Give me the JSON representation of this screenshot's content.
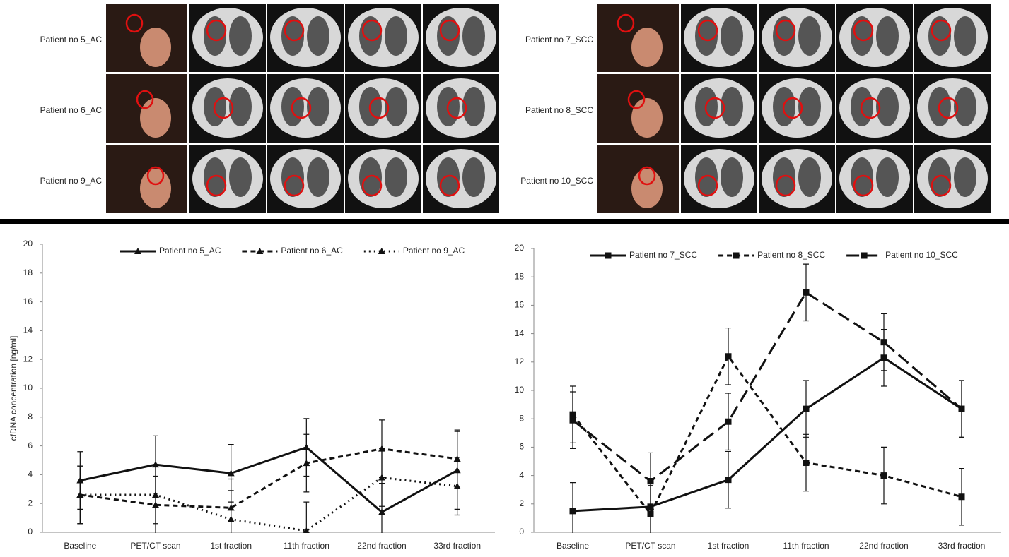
{
  "image_labels": {
    "left": [
      "Patient no 5_AC",
      "Patient no 6_AC",
      "Patient no 9_AC"
    ],
    "right": [
      "Patient no 7_SCC",
      "Patient no 8_SCC",
      "Patient no 10_SCC"
    ]
  },
  "chart_data": [
    {
      "type": "line",
      "y_label": "cfDNA concentration [ng/ml]",
      "categories": [
        "Baseline",
        "PET/CT scan",
        "1st fraction",
        "11th fraction",
        "22nd fraction",
        "33rd fraction"
      ],
      "ylim": [
        0,
        20
      ],
      "yticks": [
        0,
        2,
        4,
        6,
        8,
        10,
        12,
        14,
        16,
        18,
        20
      ],
      "marker": "triangle",
      "series": [
        {
          "name": "Patient no 5_AC",
          "color": "#111111",
          "dash": "solid",
          "values": [
            3.6,
            4.7,
            4.1,
            5.9,
            1.4,
            4.3
          ],
          "errors": [
            2,
            2,
            2,
            2,
            2,
            2.7
          ]
        },
        {
          "name": "Patient no 6_AC",
          "color": "#111111",
          "dash": "dash",
          "values": [
            2.6,
            1.9,
            1.7,
            4.8,
            5.8,
            5.1
          ],
          "errors": [
            2,
            2,
            2,
            2,
            2,
            2
          ]
        },
        {
          "name": "Patient no 9_AC",
          "color": "#111111",
          "dash": "dot",
          "values": [
            2.6,
            2.6,
            0.9,
            0.1,
            3.8,
            3.2
          ],
          "errors": [
            2,
            2,
            2,
            2,
            2,
            2
          ]
        }
      ]
    },
    {
      "type": "line",
      "categories": [
        "Baseline",
        "PET/CT scan",
        "1st fraction",
        "11th fraction",
        "22nd fraction",
        "33rd fraction"
      ],
      "ylim": [
        0,
        20
      ],
      "yticks": [
        0,
        2,
        4,
        6,
        8,
        10,
        12,
        14,
        16,
        18,
        20
      ],
      "marker": "square",
      "series": [
        {
          "name": "Patient no 7_SCC",
          "color": "#111111",
          "dash": "solid",
          "values": [
            1.5,
            1.8,
            3.7,
            8.7,
            12.3,
            8.7
          ],
          "errors": [
            2,
            2,
            2,
            2,
            2,
            2
          ]
        },
        {
          "name": "Patient no 8_SCC",
          "color": "#111111",
          "dash": "dash",
          "values": [
            8.3,
            1.3,
            12.4,
            4.9,
            4.0,
            2.5
          ],
          "errors": [
            2,
            2,
            2,
            2,
            2,
            2
          ]
        },
        {
          "name": "Patient no 10_SCC",
          "color": "#111111",
          "dash": "longdash",
          "values": [
            7.9,
            3.6,
            7.8,
            16.9,
            13.4,
            8.7
          ],
          "errors": [
            2,
            2,
            2,
            2,
            2,
            2
          ]
        }
      ]
    }
  ]
}
